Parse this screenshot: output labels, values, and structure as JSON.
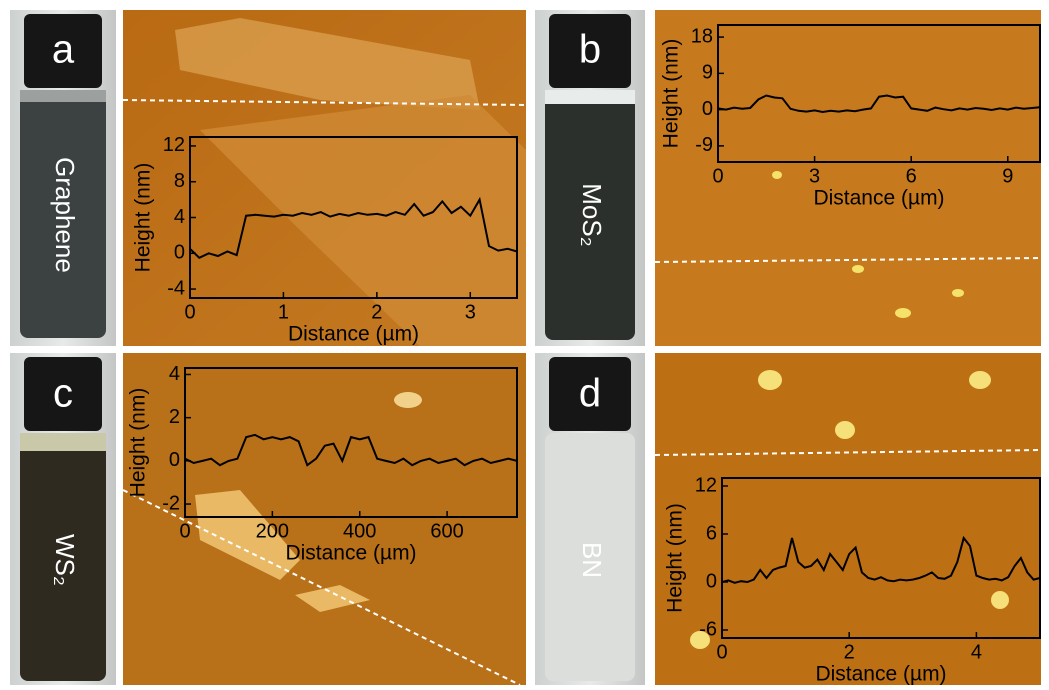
{
  "panels": [
    {
      "label": "a",
      "sample": "Graphene"
    },
    {
      "label": "b",
      "sample": "MoS₂"
    },
    {
      "label": "c",
      "sample": "WS₂"
    },
    {
      "label": "d",
      "sample": "BN"
    }
  ],
  "chart_data": [
    {
      "type": "line",
      "x_label": "Distance (µm)",
      "y_label": "Height (nm)",
      "xlim": [
        0,
        3.5
      ],
      "xticks": [
        0,
        1,
        2,
        3
      ],
      "ylim": [
        -5,
        13
      ],
      "yticks": [
        -4,
        0,
        4,
        8,
        12
      ],
      "x": [
        0,
        0.1,
        0.2,
        0.3,
        0.4,
        0.5,
        0.6,
        0.7,
        0.8,
        0.9,
        1.0,
        1.1,
        1.2,
        1.3,
        1.4,
        1.5,
        1.6,
        1.7,
        1.8,
        1.9,
        2.0,
        2.1,
        2.2,
        2.3,
        2.4,
        2.5,
        2.6,
        2.7,
        2.8,
        2.9,
        3.0,
        3.1,
        3.2,
        3.3,
        3.4,
        3.5
      ],
      "color": "#000000",
      "values": [
        0.5,
        -0.5,
        0,
        -0.3,
        0.2,
        -0.2,
        4.2,
        4.3,
        4.2,
        4.1,
        4.3,
        4.2,
        4.5,
        4.3,
        4.6,
        4.1,
        4.4,
        4.2,
        4.5,
        4.3,
        4.4,
        4.2,
        4.6,
        4.3,
        5.5,
        4.2,
        4.6,
        5.8,
        4.5,
        5.2,
        4.2,
        6.0,
        0.8,
        0.3,
        0.5,
        0.2
      ]
    },
    {
      "type": "line",
      "x_label": "Distance (µm)",
      "y_label": "Height (nm)",
      "xlim": [
        0,
        10
      ],
      "xticks": [
        0,
        3,
        6,
        9
      ],
      "ylim": [
        -13,
        21
      ],
      "yticks": [
        -9,
        0,
        9,
        18
      ],
      "x": [
        0,
        0.25,
        0.5,
        0.75,
        1,
        1.25,
        1.5,
        1.75,
        2,
        2.25,
        2.5,
        2.75,
        3,
        3.25,
        3.5,
        3.75,
        4,
        4.25,
        4.5,
        4.75,
        5,
        5.25,
        5.5,
        5.75,
        6,
        6.25,
        6.5,
        6.75,
        7,
        7.25,
        7.5,
        7.75,
        8,
        8.25,
        8.5,
        8.75,
        9,
        9.25,
        9.5,
        9.75,
        10
      ],
      "color": "#000000",
      "values": [
        0.3,
        0,
        0.5,
        0.2,
        0.4,
        2.5,
        3.5,
        3,
        2.8,
        0.2,
        -0.3,
        -0.5,
        -0.2,
        -0.6,
        -0.3,
        -0.5,
        -0.2,
        -0.4,
        0,
        0.3,
        3.2,
        3.5,
        3,
        3.2,
        0.3,
        0,
        -0.3,
        0.5,
        0.1,
        -0.2,
        0.3,
        0,
        0.4,
        0.2,
        -0.1,
        0.3,
        0,
        0.5,
        0.2,
        0.4,
        0.6
      ]
    },
    {
      "type": "line",
      "x_label": "Distance (µm)",
      "y_label": "Height (nm)",
      "xlim": [
        0,
        760
      ],
      "xticks": [
        0,
        200,
        400,
        600
      ],
      "ylim": [
        -2.6,
        4.3
      ],
      "yticks": [
        -2,
        0,
        2,
        4
      ],
      "x": [
        0,
        20,
        40,
        60,
        80,
        100,
        120,
        140,
        160,
        180,
        200,
        220,
        240,
        260,
        280,
        300,
        320,
        340,
        360,
        380,
        400,
        420,
        440,
        460,
        480,
        500,
        520,
        540,
        560,
        580,
        600,
        620,
        640,
        660,
        680,
        700,
        720,
        740,
        760
      ],
      "color": "#000000",
      "values": [
        0.1,
        -0.1,
        0,
        0.1,
        -0.2,
        0,
        0.1,
        1.1,
        1.2,
        1.0,
        1.1,
        1.0,
        1.1,
        0.9,
        -0.2,
        0.1,
        0.7,
        0.8,
        0,
        1.1,
        1.0,
        1.1,
        0.1,
        0,
        -0.1,
        0.1,
        -0.2,
        0,
        0.1,
        -0.1,
        0,
        0.1,
        -0.2,
        0,
        0.1,
        -0.1,
        0,
        0.1,
        0
      ]
    },
    {
      "type": "line",
      "x_label": "Distance (µm)",
      "y_label": "Height (nm)",
      "xlim": [
        0,
        5
      ],
      "xticks": [
        0,
        2,
        4
      ],
      "ylim": [
        -7,
        13
      ],
      "yticks": [
        -6,
        0,
        6,
        12
      ],
      "x": [
        0,
        0.1,
        0.2,
        0.3,
        0.4,
        0.5,
        0.6,
        0.7,
        0.8,
        0.9,
        1.0,
        1.1,
        1.2,
        1.3,
        1.4,
        1.5,
        1.6,
        1.7,
        1.8,
        1.9,
        2.0,
        2.1,
        2.2,
        2.3,
        2.4,
        2.5,
        2.6,
        2.7,
        2.8,
        2.9,
        3.0,
        3.1,
        3.2,
        3.3,
        3.4,
        3.5,
        3.6,
        3.7,
        3.8,
        3.9,
        4.0,
        4.1,
        4.2,
        4.3,
        4.4,
        4.5,
        4.6,
        4.7,
        4.8,
        4.9,
        5.0
      ],
      "color": "#000000",
      "values": [
        0,
        0.2,
        -0.1,
        0.1,
        0,
        0.3,
        1.5,
        0.5,
        1.5,
        1.8,
        2,
        5.5,
        2.5,
        1.8,
        2,
        2.8,
        1.5,
        3.5,
        2.5,
        1.5,
        3.5,
        4.3,
        1.2,
        0.5,
        0.3,
        0.6,
        0.2,
        0.1,
        0.3,
        0.2,
        0.3,
        0.5,
        0.8,
        1.2,
        0.5,
        0.4,
        0.8,
        2.5,
        5.5,
        4.5,
        0.8,
        0.5,
        0.3,
        0.4,
        0.2,
        0.6,
        2.0,
        3.0,
        1.2,
        0.3,
        0.5
      ]
    }
  ]
}
